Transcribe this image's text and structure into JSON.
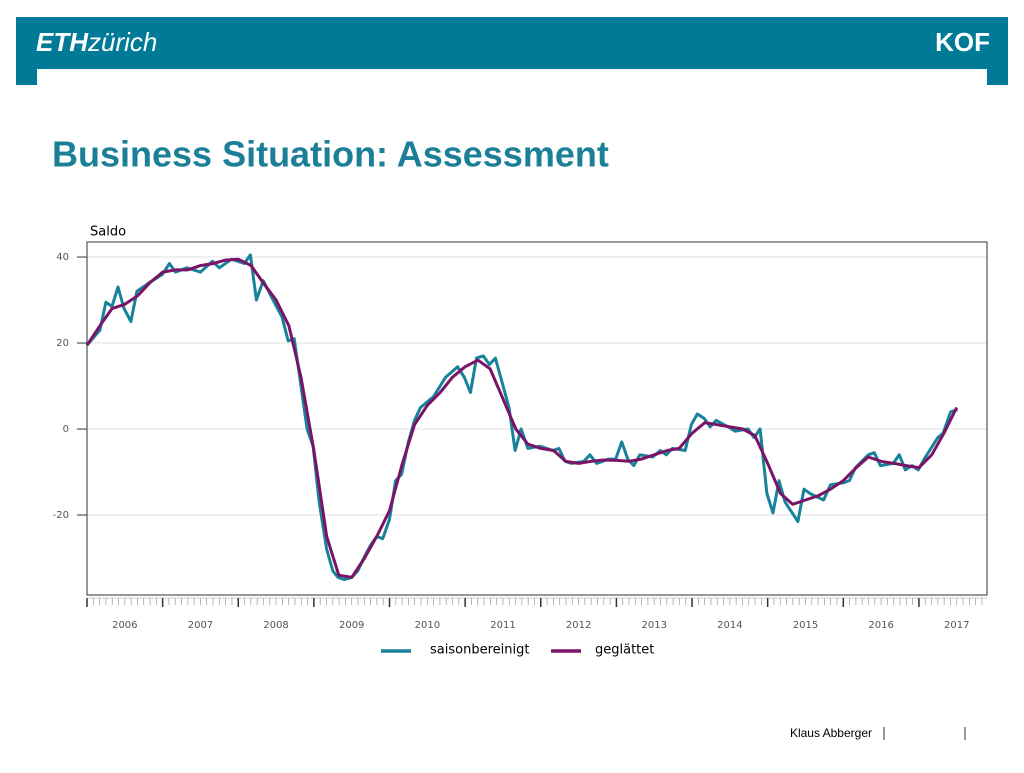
{
  "header": {
    "logo_bold": "ETH",
    "logo_rest": "zürich",
    "brand": "KOF"
  },
  "footer": {
    "author": "Klaus Abberger"
  },
  "chart_data": {
    "type": "line",
    "title": "Business Situation: Assessment",
    "y_label": "Saldo",
    "xlim": [
      2006,
      2017.9
    ],
    "xticks": [
      {
        "value": 2006,
        "label": "2006"
      },
      {
        "value": 2007,
        "label": "2007"
      },
      {
        "value": 2008,
        "label": "2008"
      },
      {
        "value": 2009,
        "label": "2009"
      },
      {
        "value": 2010,
        "label": "2010"
      },
      {
        "value": 2011,
        "label": "2011"
      },
      {
        "value": 2012,
        "label": "2012"
      },
      {
        "value": 2013,
        "label": "2013"
      },
      {
        "value": 2014,
        "label": "2014"
      },
      {
        "value": 2015,
        "label": "2015"
      },
      {
        "value": 2016,
        "label": "2016"
      },
      {
        "value": 2017,
        "label": "2017"
      }
    ],
    "ylim": [
      -38.6,
      43.5
    ],
    "yticks": [
      -20,
      0,
      20,
      40
    ],
    "grid": true,
    "legend": "bottom",
    "series": [
      {
        "name": "saisonbereinigt",
        "color": "#17829a",
        "x": [
          2006.0,
          2006.17,
          2006.25,
          2006.33,
          2006.41,
          2006.49,
          2006.58,
          2006.66,
          2006.82,
          2007.0,
          2007.09,
          2007.17,
          2007.32,
          2007.5,
          2007.66,
          2007.75,
          2007.91,
          2008.08,
          2008.16,
          2008.24,
          2008.33,
          2008.49,
          2008.58,
          2008.66,
          2008.74,
          2008.83,
          2008.91,
          2008.99,
          2009.07,
          2009.17,
          2009.25,
          2009.32,
          2009.4,
          2009.5,
          2009.58,
          2009.66,
          2009.75,
          2009.83,
          2009.91,
          2010.0,
          2010.08,
          2010.16,
          2010.25,
          2010.33,
          2010.41,
          2010.58,
          2010.74,
          2010.9,
          2010.99,
          2011.07,
          2011.15,
          2011.24,
          2011.32,
          2011.4,
          2011.58,
          2011.66,
          2011.74,
          2011.83,
          2011.99,
          2012.16,
          2012.24,
          2012.32,
          2012.41,
          2012.57,
          2012.65,
          2012.74,
          2012.9,
          2012.99,
          2013.07,
          2013.15,
          2013.23,
          2013.31,
          2013.48,
          2013.58,
          2013.66,
          2013.74,
          2013.91,
          2013.99,
          2014.07,
          2014.16,
          2014.24,
          2014.32,
          2014.48,
          2014.57,
          2014.74,
          2014.82,
          2014.9,
          2014.99,
          2015.07,
          2015.15,
          2015.23,
          2015.4,
          2015.48,
          2015.56,
          2015.74,
          2015.83,
          2016.0,
          2016.08,
          2016.16,
          2016.33,
          2016.41,
          2016.49,
          2016.66,
          2016.74,
          2016.82,
          2016.91,
          2016.99,
          2017.07,
          2017.25,
          2017.32,
          2017.42,
          2017.51
        ],
        "values": [
          19.5,
          23,
          29.5,
          28.5,
          33,
          28,
          25,
          32,
          34,
          36,
          38.5,
          36.5,
          37.5,
          36.5,
          39,
          37.5,
          39.5,
          38.5,
          40.5,
          30,
          34.5,
          29,
          26,
          20.5,
          21,
          10,
          0,
          -4,
          -17,
          -28,
          -33,
          -34.5,
          -35,
          -34.5,
          -33,
          -30,
          -27,
          -25,
          -25.5,
          -21,
          -12,
          -10.5,
          -3,
          2,
          5,
          7.5,
          12,
          14.5,
          12,
          8.5,
          16.5,
          17,
          15,
          16.5,
          5,
          -5,
          0,
          -4.5,
          -4,
          -5,
          -4.5,
          -7.5,
          -8,
          -7.5,
          -6,
          -8,
          -7,
          -7,
          -3,
          -7,
          -8.5,
          -6,
          -6.5,
          -5,
          -6,
          -4.5,
          -5,
          1,
          3.5,
          2.5,
          0.5,
          2,
          0.5,
          -0.5,
          0,
          -2,
          0,
          -15,
          -19.5,
          -12,
          -17,
          -21.5,
          -14,
          -15,
          -16.5,
          -13,
          -12.5,
          -12,
          -9,
          -6,
          -5.5,
          -8.5,
          -8,
          -6,
          -9.5,
          -8.5,
          -9.5,
          -7,
          -2,
          -1,
          4,
          4.5
        ]
      },
      {
        "name": "geglättet",
        "color": "#7b1466",
        "x": [
          2006.0,
          2006.17,
          2006.33,
          2006.5,
          2006.67,
          2006.83,
          2007.0,
          2007.17,
          2007.33,
          2007.5,
          2007.67,
          2007.83,
          2008.0,
          2008.17,
          2008.33,
          2008.5,
          2008.67,
          2008.83,
          2009.0,
          2009.17,
          2009.33,
          2009.5,
          2009.67,
          2009.83,
          2010.0,
          2010.17,
          2010.33,
          2010.5,
          2010.67,
          2010.83,
          2011.0,
          2011.17,
          2011.33,
          2011.5,
          2011.67,
          2011.83,
          2012.0,
          2012.17,
          2012.33,
          2012.5,
          2012.67,
          2012.83,
          2013.0,
          2013.17,
          2013.33,
          2013.5,
          2013.67,
          2013.83,
          2014.0,
          2014.17,
          2014.33,
          2014.5,
          2014.67,
          2014.83,
          2015.0,
          2015.17,
          2015.33,
          2015.5,
          2015.67,
          2015.83,
          2016.0,
          2016.17,
          2016.33,
          2016.5,
          2016.67,
          2016.83,
          2017.0,
          2017.17,
          2017.33,
          2017.5
        ],
        "values": [
          19.5,
          24,
          28,
          29,
          31,
          34,
          36.5,
          37,
          37,
          38,
          38.5,
          39.3,
          39.5,
          38,
          34,
          30,
          24,
          12,
          -5,
          -25,
          -34,
          -34.5,
          -30,
          -25,
          -19,
          -8,
          1,
          5.5,
          8.5,
          12,
          14.5,
          16,
          14,
          7,
          0,
          -3.5,
          -4.5,
          -5,
          -7.5,
          -8,
          -7.5,
          -7.2,
          -7.3,
          -7.5,
          -7,
          -6,
          -5,
          -4.5,
          -1,
          1.5,
          1,
          0.5,
          0,
          -1.5,
          -8,
          -15,
          -17.5,
          -16.5,
          -15.5,
          -14,
          -12,
          -9,
          -6.5,
          -7.5,
          -8,
          -8.5,
          -9,
          -6,
          -1,
          5
        ]
      }
    ]
  }
}
